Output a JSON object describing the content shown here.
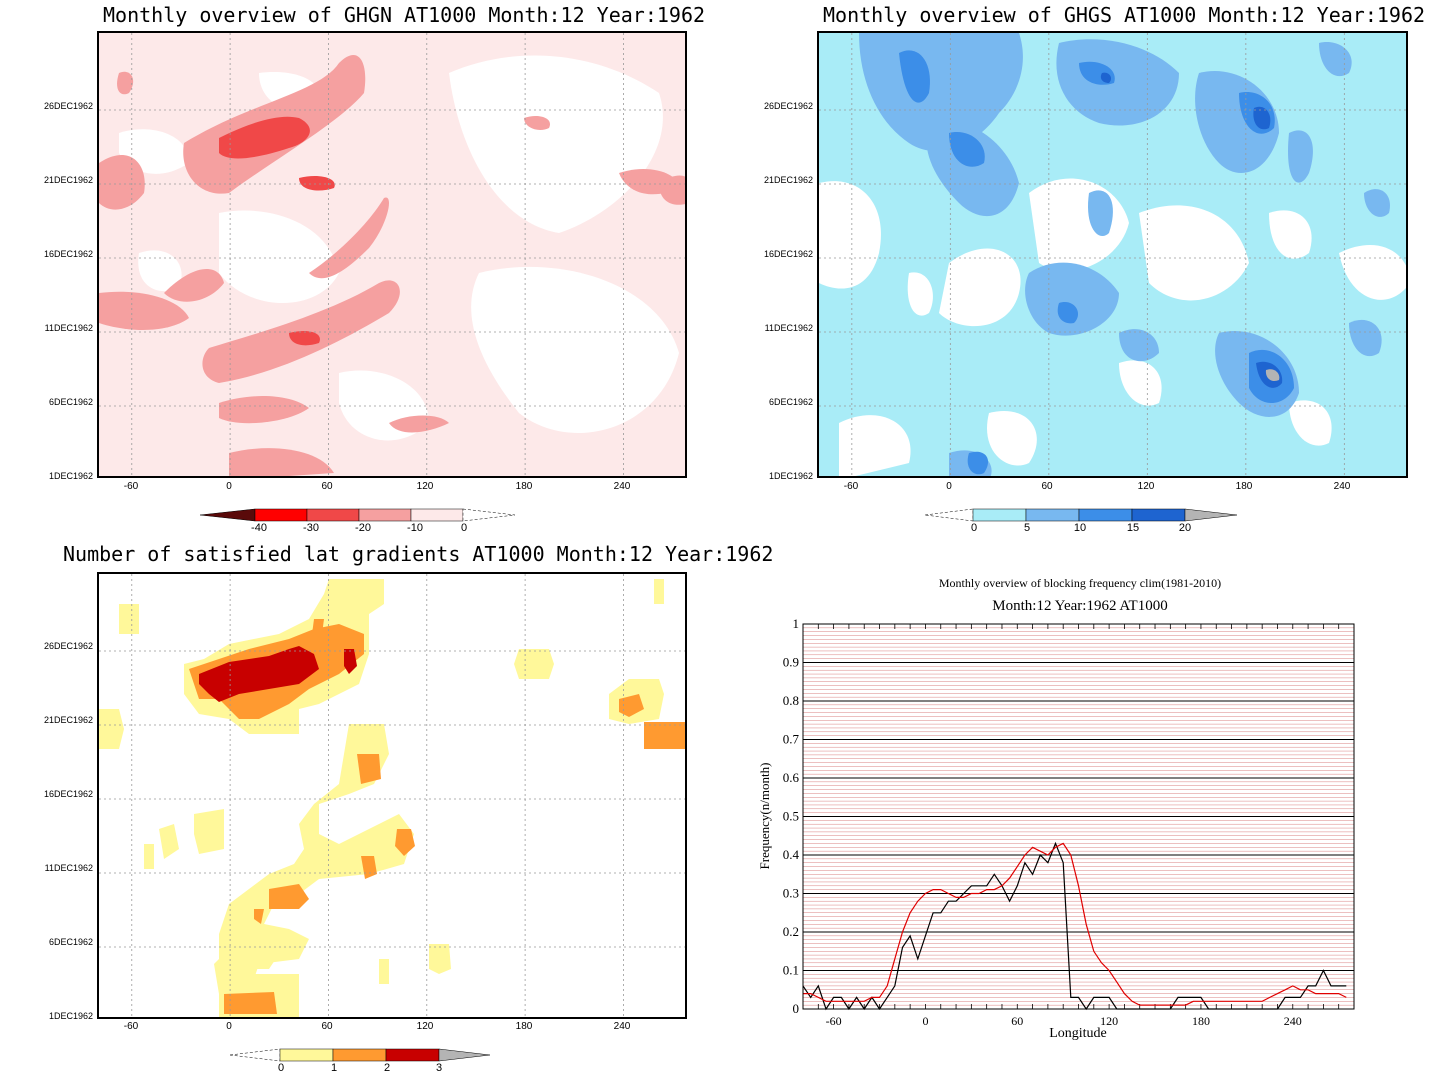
{
  "panels": {
    "ghgn": {
      "title": "Monthly overview of GHGN AT1000 Month:12 Year:1962",
      "colorbar": {
        "labels": [
          "-40",
          "-30",
          "-20",
          "-10",
          "0"
        ],
        "colors": [
          "#5a0a0a",
          "#ff0000",
          "#f04848",
          "#f5a0a0",
          "#fde9e9"
        ]
      }
    },
    "ghgs": {
      "title": "Monthly overview of GHGS AT1000 Month:12 Year:1962",
      "colorbar": {
        "labels": [
          "0",
          "5",
          "10",
          "15",
          "20"
        ],
        "colors": [
          "#a9ecf7",
          "#78b8f0",
          "#3c8ee8",
          "#1e64d0",
          "#b4b4b4"
        ]
      }
    },
    "lat": {
      "title": "Number of satisfied lat gradients AT1000 Month:12 Year:1962",
      "colorbar": {
        "labels": [
          "0",
          "1",
          "2",
          "3"
        ],
        "colors": [
          "#fff89a",
          "#ff9a30",
          "#c80000",
          "#b4b4b4"
        ]
      }
    },
    "freq": {
      "title": "Monthly overview of blocking frequency clim(1981-2010)",
      "subtitle": "Month:12 Year:1962  AT1000",
      "ylabel": "Frequency(n/month)",
      "xlabel": "Longitude"
    }
  },
  "map_axes": {
    "x_ticks": [
      "-60",
      "0",
      "60",
      "120",
      "180",
      "240"
    ],
    "y_ticks": [
      "1DEC1962",
      "6DEC1962",
      "11DEC1962",
      "16DEC1962",
      "21DEC1962",
      "26DEC1962"
    ]
  },
  "chart_data": [
    {
      "type": "heatmap",
      "title": "Monthly overview of GHGN AT1000 Month:12 Year:1962",
      "x_range": [
        -80,
        280
      ],
      "y_range": [
        "1DEC1962",
        "31DEC1962"
      ],
      "levels": [
        -40,
        -30,
        -20,
        -10,
        0
      ]
    },
    {
      "type": "heatmap",
      "title": "Monthly overview of GHGS AT1000 Month:12 Year:1962",
      "x_range": [
        -80,
        280
      ],
      "y_range": [
        "1DEC1962",
        "31DEC1962"
      ],
      "levels": [
        0,
        5,
        10,
        15,
        20
      ]
    },
    {
      "type": "heatmap",
      "title": "Number of satisfied lat gradients AT1000 Month:12 Year:1962",
      "x_range": [
        -80,
        280
      ],
      "y_range": [
        "1DEC1962",
        "31DEC1962"
      ],
      "levels": [
        0,
        1,
        2,
        3
      ]
    },
    {
      "type": "line",
      "title": "Monthly overview of blocking frequency clim(1981-2010)",
      "subtitle": "Month:12 Year:1962  AT1000",
      "xlabel": "Longitude",
      "ylabel": "Frequency(n/month)",
      "xlim": [
        -80,
        280
      ],
      "ylim": [
        0,
        1
      ],
      "x_ticks": [
        -60,
        0,
        60,
        120,
        180,
        240
      ],
      "y_ticks": [
        0,
        0.1,
        0.2,
        0.3,
        0.4,
        0.5,
        0.6,
        0.7,
        0.8,
        0.9,
        1
      ],
      "grid": true,
      "series": [
        {
          "color": "#000000",
          "x": [
            -80,
            -75,
            -70,
            -65,
            -60,
            -55,
            -50,
            -45,
            -40,
            -35,
            -30,
            -25,
            -20,
            -15,
            -10,
            -5,
            0,
            5,
            10,
            15,
            20,
            25,
            30,
            35,
            40,
            45,
            50,
            55,
            60,
            65,
            70,
            75,
            80,
            85,
            90,
            95,
            100,
            105,
            110,
            115,
            120,
            125,
            130,
            135,
            140,
            145,
            150,
            155,
            160,
            165,
            170,
            175,
            180,
            185,
            190,
            195,
            200,
            205,
            210,
            215,
            220,
            225,
            230,
            235,
            240,
            245,
            250,
            255,
            260,
            265,
            270,
            275
          ],
          "values": [
            0.06,
            0.03,
            0.06,
            0.0,
            0.03,
            0.03,
            0.0,
            0.03,
            0.0,
            0.03,
            0.0,
            0.03,
            0.06,
            0.16,
            0.19,
            0.13,
            0.19,
            0.25,
            0.25,
            0.28,
            0.28,
            0.3,
            0.32,
            0.32,
            0.32,
            0.35,
            0.32,
            0.28,
            0.32,
            0.38,
            0.35,
            0.4,
            0.38,
            0.43,
            0.38,
            0.03,
            0.03,
            0.0,
            0.03,
            0.03,
            0.03,
            0.0,
            0.0,
            0.0,
            0.0,
            0.0,
            0.0,
            0.0,
            0.0,
            0.03,
            0.03,
            0.03,
            0.03,
            0.0,
            0.0,
            0.0,
            0.0,
            0.0,
            0.0,
            0.0,
            0.0,
            0.0,
            0.0,
            0.03,
            0.03,
            0.03,
            0.06,
            0.06,
            0.1,
            0.06,
            0.06,
            0.06
          ]
        },
        {
          "color": "#e00000",
          "x": [
            -80,
            -75,
            -70,
            -65,
            -60,
            -55,
            -50,
            -45,
            -40,
            -35,
            -30,
            -25,
            -20,
            -15,
            -10,
            -5,
            0,
            5,
            10,
            15,
            20,
            25,
            30,
            35,
            40,
            45,
            50,
            55,
            60,
            65,
            70,
            75,
            80,
            85,
            90,
            95,
            100,
            105,
            110,
            115,
            120,
            125,
            130,
            135,
            140,
            145,
            150,
            155,
            160,
            165,
            170,
            175,
            180,
            185,
            190,
            195,
            200,
            205,
            210,
            215,
            220,
            225,
            230,
            235,
            240,
            245,
            250,
            255,
            260,
            265,
            270,
            275
          ],
          "values": [
            0.04,
            0.04,
            0.03,
            0.02,
            0.02,
            0.02,
            0.02,
            0.02,
            0.02,
            0.03,
            0.03,
            0.06,
            0.13,
            0.2,
            0.25,
            0.28,
            0.3,
            0.31,
            0.31,
            0.3,
            0.29,
            0.29,
            0.3,
            0.3,
            0.31,
            0.31,
            0.32,
            0.34,
            0.37,
            0.4,
            0.42,
            0.41,
            0.4,
            0.42,
            0.43,
            0.4,
            0.32,
            0.22,
            0.15,
            0.12,
            0.1,
            0.07,
            0.04,
            0.02,
            0.01,
            0.01,
            0.01,
            0.01,
            0.01,
            0.01,
            0.01,
            0.02,
            0.02,
            0.02,
            0.02,
            0.02,
            0.02,
            0.02,
            0.02,
            0.02,
            0.02,
            0.03,
            0.04,
            0.05,
            0.06,
            0.05,
            0.05,
            0.04,
            0.04,
            0.04,
            0.04,
            0.03
          ]
        }
      ]
    }
  ]
}
